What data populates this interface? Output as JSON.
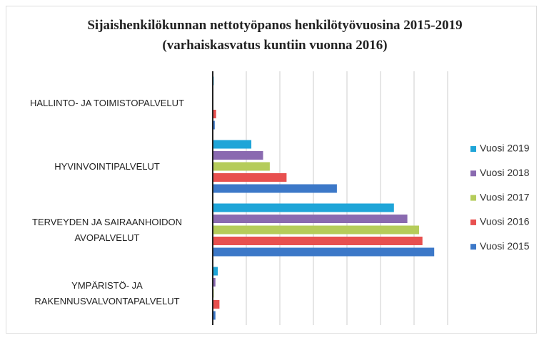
{
  "chart_data": {
    "type": "barh",
    "title": "Sijaishenkilökunnan nettotyöpanos henkilötyövuosina 2015-2019 (varhaiskasvatus kuntiin vuonna 2016)",
    "categories": [
      "HALLINTO- JA TOIMISTOPALVELUT",
      "HYVINVOINTIPALVELUT",
      "TERVEYDEN JA SAIRAANHOIDON AVOPALVELUT",
      "YMPÄRISTÖ- JA RAKENNUSVALVONTAPALVELUT"
    ],
    "series": [
      {
        "name": "Vuosi 2019",
        "color": "#1fa5d8",
        "values": [
          0.03,
          1.15,
          5.4,
          0.15
        ]
      },
      {
        "name": "Vuosi 2018",
        "color": "#8a6ab0",
        "values": [
          0.02,
          1.5,
          5.8,
          0.08
        ]
      },
      {
        "name": "Vuosi 2017",
        "color": "#b5cc5a",
        "values": [
          0.02,
          1.7,
          6.15,
          0.03
        ]
      },
      {
        "name": "Vuosi 2016",
        "color": "#e8504f",
        "values": [
          0.1,
          2.2,
          6.25,
          0.2
        ]
      },
      {
        "name": "Vuosi 2015",
        "color": "#3c78c8",
        "values": [
          0.06,
          3.7,
          6.6,
          0.08
        ]
      }
    ],
    "xlim": [
      0,
      7
    ],
    "xticks": [
      0,
      1,
      2,
      3,
      4,
      5,
      6,
      7
    ],
    "grid": true,
    "legend": "right"
  }
}
